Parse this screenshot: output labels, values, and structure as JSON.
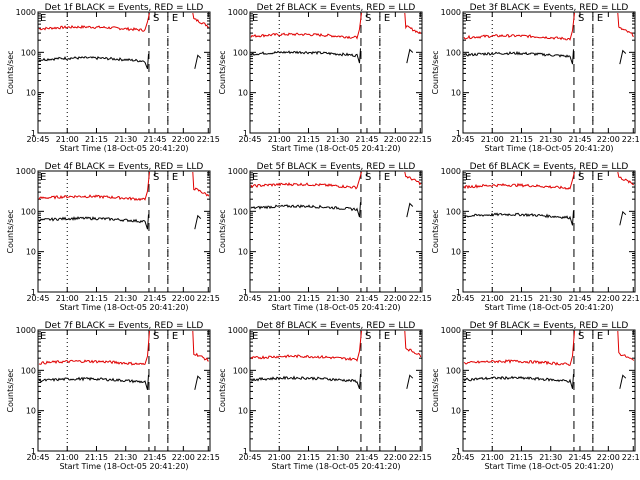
{
  "figure": {
    "background": "#ffffff",
    "colors": {
      "black_series": "#000000",
      "red_series": "#e00000",
      "axes": "#000000"
    }
  },
  "chart_data": [
    {
      "type": "line",
      "title": "Det 1f BLACK = Events, RED = LLD",
      "ylabel": "Counts/sec",
      "xlabel": "Start Time (18-Oct-05 20:41:20)",
      "xticks": [
        "20:45",
        "21:00",
        "21:15",
        "21:30",
        "21:45",
        "22:00",
        "22:15"
      ],
      "yticks": [
        "1",
        "10",
        "100",
        "1000"
      ],
      "yscale": "log",
      "ylim": [
        1,
        1000
      ],
      "markers": [
        {
          "label": "S"
        },
        {
          "label": "E"
        }
      ],
      "series": [
        {
          "color": "red",
          "level": 380
        },
        {
          "color": "black",
          "level": 65
        }
      ]
    },
    {
      "type": "line",
      "title": "Det 2f BLACK = Events, RED = LLD",
      "ylabel": "Counts/sec",
      "xlabel": "Start Time (18-Oct-05 20:41:20)",
      "xticks": [
        "20:45",
        "21:00",
        "21:15",
        "21:30",
        "21:45",
        "22:00",
        "22:15"
      ],
      "yticks": [
        "1",
        "10",
        "100",
        "1000"
      ],
      "yscale": "log",
      "ylim": [
        1,
        1000
      ],
      "markers": [
        {
          "label": "S"
        },
        {
          "label": "E"
        }
      ],
      "series": [
        {
          "color": "red",
          "level": 250
        },
        {
          "color": "black",
          "level": 90
        }
      ]
    },
    {
      "type": "line",
      "title": "Det 3f BLACK = Events, RED = LLD",
      "ylabel": "Counts/sec",
      "xlabel": "Start Time (18-Oct-05 20:41:20)",
      "xticks": [
        "20:45",
        "21:00",
        "21:15",
        "21:30",
        "21:45",
        "22:00",
        "22:15"
      ],
      "yticks": [
        "1",
        "10",
        "100",
        "1000"
      ],
      "yscale": "log",
      "ylim": [
        1,
        1000
      ],
      "markers": [
        {
          "label": "S"
        },
        {
          "label": "E"
        }
      ],
      "series": [
        {
          "color": "red",
          "level": 230
        },
        {
          "color": "black",
          "level": 85
        }
      ]
    },
    {
      "type": "line",
      "title": "Det 4f BLACK = Events, RED = LLD",
      "ylabel": "Counts/sec",
      "xlabel": "Start Time (18-Oct-05 20:41:20)",
      "xticks": [
        "20:45",
        "21:00",
        "21:15",
        "21:30",
        "21:45",
        "22:00",
        "22:15"
      ],
      "yticks": [
        "1",
        "10",
        "100",
        "1000"
      ],
      "yscale": "log",
      "ylim": [
        1,
        1000
      ],
      "markers": [
        {
          "label": "S"
        },
        {
          "label": "E"
        }
      ],
      "series": [
        {
          "color": "red",
          "level": 210
        },
        {
          "color": "black",
          "level": 60
        }
      ]
    },
    {
      "type": "line",
      "title": "Det 5f BLACK = Events, RED = LLD",
      "ylabel": "Counts/sec",
      "xlabel": "Start Time (18-Oct-05 20:41:20)",
      "xticks": [
        "20:45",
        "21:00",
        "21:15",
        "21:30",
        "21:45",
        "22:00",
        "22:15"
      ],
      "yticks": [
        "1",
        "10",
        "100",
        "1000"
      ],
      "yscale": "log",
      "ylim": [
        1,
        1000
      ],
      "markers": [
        {
          "label": "S"
        },
        {
          "label": "E"
        }
      ],
      "series": [
        {
          "color": "red",
          "level": 420
        },
        {
          "color": "black",
          "level": 120
        }
      ]
    },
    {
      "type": "line",
      "title": "Det 6f BLACK = Events, RED = LLD",
      "ylabel": "Counts/sec",
      "xlabel": "Start Time (18-Oct-05 20:41:20)",
      "xticks": [
        "20:45",
        "21:00",
        "21:15",
        "21:30",
        "21:45",
        "22:00",
        "22:15"
      ],
      "yticks": [
        "1",
        "10",
        "100",
        "1000"
      ],
      "yscale": "log",
      "ylim": [
        1,
        1000
      ],
      "markers": [
        {
          "label": "S"
        },
        {
          "label": "E"
        }
      ],
      "series": [
        {
          "color": "red",
          "level": 400
        },
        {
          "color": "black",
          "level": 75
        }
      ]
    },
    {
      "type": "line",
      "title": "Det 7f BLACK = Events, RED = LLD",
      "ylabel": "Counts/sec",
      "xlabel": "Start Time (18-Oct-05 20:41:20)",
      "xticks": [
        "20:45",
        "21:00",
        "21:15",
        "21:30",
        "21:45",
        "22:00",
        "22:15"
      ],
      "yticks": [
        "1",
        "10",
        "100",
        "1000"
      ],
      "yscale": "log",
      "ylim": [
        1,
        1000
      ],
      "markers": [
        {
          "label": "S"
        },
        {
          "label": "E"
        }
      ],
      "series": [
        {
          "color": "red",
          "level": 150
        },
        {
          "color": "black",
          "level": 55
        }
      ]
    },
    {
      "type": "line",
      "title": "Det 8f BLACK = Events, RED = LLD",
      "ylabel": "Counts/sec",
      "xlabel": "Start Time (18-Oct-05 20:41:20)",
      "xticks": [
        "20:45",
        "21:00",
        "21:15",
        "21:30",
        "21:45",
        "22:00",
        "22:15"
      ],
      "yticks": [
        "1",
        "10",
        "100",
        "1000"
      ],
      "yscale": "log",
      "ylim": [
        1,
        1000
      ],
      "markers": [
        {
          "label": "S"
        },
        {
          "label": "E"
        }
      ],
      "series": [
        {
          "color": "red",
          "level": 200
        },
        {
          "color": "black",
          "level": 58
        }
      ]
    },
    {
      "type": "line",
      "title": "Det 9f BLACK = Events, RED = LLD",
      "ylabel": "Counts/sec",
      "xlabel": "Start Time (18-Oct-05 20:41:20)",
      "xticks": [
        "20:45",
        "21:00",
        "21:15",
        "21:30",
        "21:45",
        "22:00",
        "22:15"
      ],
      "yticks": [
        "1",
        "10",
        "100",
        "1000"
      ],
      "yscale": "log",
      "ylim": [
        1,
        1000
      ],
      "markers": [
        {
          "label": "S"
        },
        {
          "label": "E"
        }
      ],
      "series": [
        {
          "color": "red",
          "level": 150
        },
        {
          "color": "black",
          "level": 58
        }
      ]
    }
  ]
}
